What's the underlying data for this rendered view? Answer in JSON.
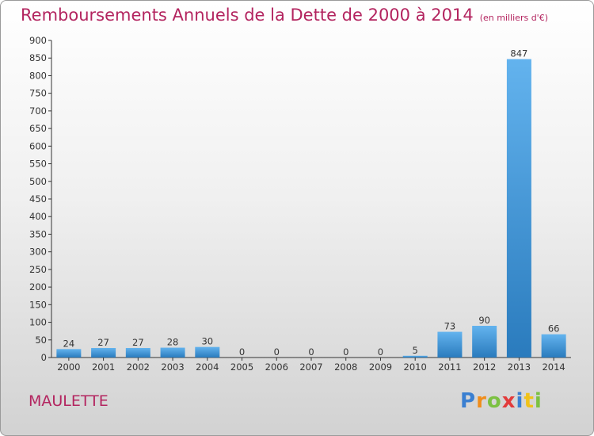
{
  "header": {
    "title": "Remboursements Annuels de la Dette de 2000 à 2014",
    "unit": "(en milliers d'€)"
  },
  "commune": "MAULETTE",
  "logo": "Proxiti",
  "colors": {
    "title": "#b3245f",
    "bar_top": "#63b3ee",
    "bar_bottom": "#2a7bbd",
    "axis": "#333333"
  },
  "chart_data": {
    "type": "bar",
    "categories": [
      "2000",
      "2001",
      "2002",
      "2003",
      "2004",
      "2005",
      "2006",
      "2007",
      "2008",
      "2009",
      "2010",
      "2011",
      "2012",
      "2013",
      "2014"
    ],
    "values": [
      24,
      27,
      27,
      28,
      30,
      0,
      0,
      0,
      0,
      0,
      5,
      73,
      90,
      847,
      66
    ],
    "title": "Remboursements Annuels de la Dette de 2000 à 2014",
    "xlabel": "",
    "ylabel": "",
    "ylim": [
      0,
      900
    ],
    "yticks": [
      0,
      50,
      100,
      150,
      200,
      250,
      300,
      350,
      400,
      450,
      500,
      550,
      600,
      650,
      700,
      750,
      800,
      850,
      900
    ],
    "grid": false,
    "legend": "none"
  }
}
